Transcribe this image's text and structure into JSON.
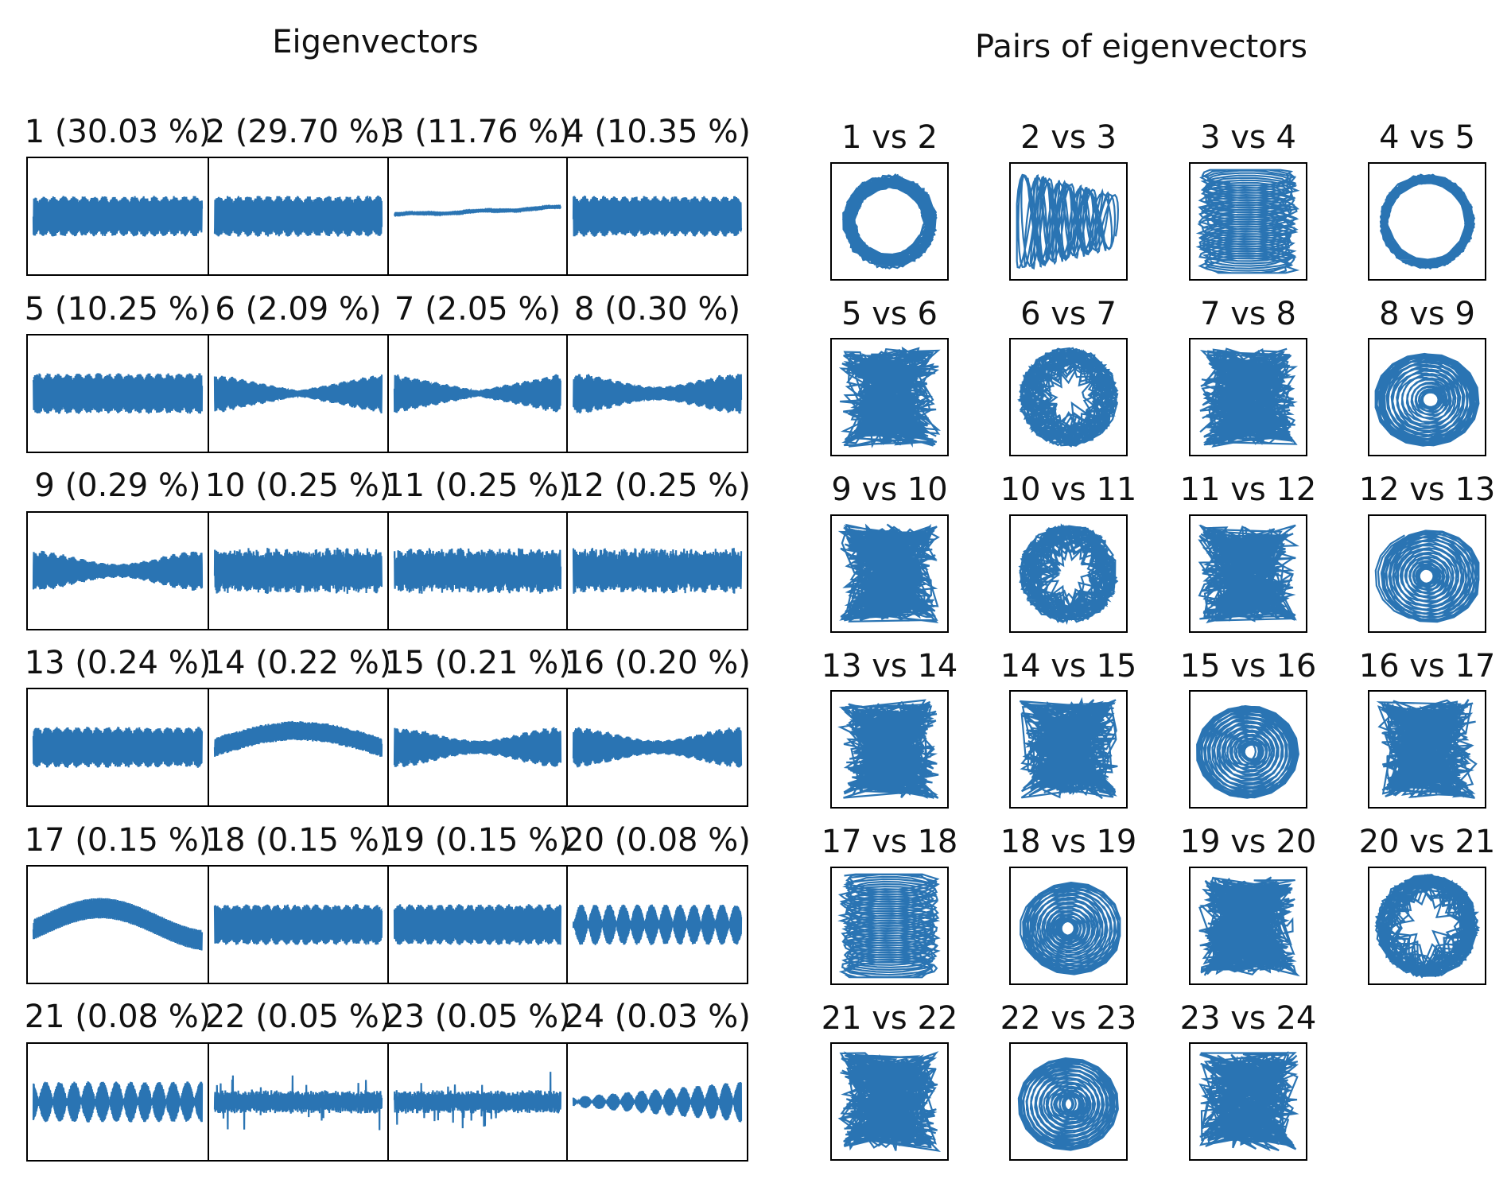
{
  "figure": {
    "left_title": "Eigenvectors",
    "right_title": "Pairs of eigenvectors",
    "line_color": "#2a74b3",
    "frame_color": "#000000"
  },
  "chart_data": [
    {
      "type": "line",
      "title": "Eigenvectors",
      "layout": "6x4 grid of small multiples, shared frame per row, no axis ticks",
      "panels": [
        {
          "label": "1 (30.03 %)",
          "component": 1,
          "variance_pct": 30.03,
          "pattern": "constant-amplitude oscillation"
        },
        {
          "label": "2 (29.70 %)",
          "component": 2,
          "variance_pct": 29.7,
          "pattern": "constant-amplitude oscillation"
        },
        {
          "label": "3 (11.76 %)",
          "component": 3,
          "variance_pct": 11.76,
          "pattern": "slow rising trend"
        },
        {
          "label": "4 (10.35 %)",
          "component": 4,
          "variance_pct": 10.35,
          "pattern": "constant-amplitude oscillation"
        },
        {
          "label": "5 (10.25 %)",
          "component": 5,
          "variance_pct": 10.25,
          "pattern": "constant-amplitude oscillation"
        },
        {
          "label": "6 (2.09 %)",
          "component": 6,
          "variance_pct": 2.09,
          "pattern": "amplitude-modulated, minimum at center"
        },
        {
          "label": "7 (2.05 %)",
          "component": 7,
          "variance_pct": 2.05,
          "pattern": "amplitude-modulated, minimum at center"
        },
        {
          "label": "8 (0.30 %)",
          "component": 8,
          "variance_pct": 0.3,
          "pattern": "amplitude-modulated"
        },
        {
          "label": "9 (0.29 %)",
          "component": 9,
          "variance_pct": 0.29,
          "pattern": "amplitude-modulated"
        },
        {
          "label": "10 (0.25 %)",
          "component": 10,
          "variance_pct": 0.25,
          "pattern": "noisy oscillation"
        },
        {
          "label": "11 (0.25 %)",
          "component": 11,
          "variance_pct": 0.25,
          "pattern": "noisy oscillation"
        },
        {
          "label": "12 (0.25 %)",
          "component": 12,
          "variance_pct": 0.25,
          "pattern": "noisy oscillation"
        },
        {
          "label": "13 (0.24 %)",
          "component": 13,
          "variance_pct": 0.24,
          "pattern": "oscillation"
        },
        {
          "label": "14 (0.22 %)",
          "component": 14,
          "variance_pct": 0.22,
          "pattern": "oscillation on hump"
        },
        {
          "label": "15 (0.21 %)",
          "component": 15,
          "variance_pct": 0.21,
          "pattern": "amplitude-modulated"
        },
        {
          "label": "16 (0.20 %)",
          "component": 16,
          "variance_pct": 0.2,
          "pattern": "amplitude-modulated"
        },
        {
          "label": "17 (0.15 %)",
          "component": 17,
          "variance_pct": 0.15,
          "pattern": "oscillation on slow wave"
        },
        {
          "label": "18 (0.15 %)",
          "component": 18,
          "variance_pct": 0.15,
          "pattern": "oscillation"
        },
        {
          "label": "19 (0.15 %)",
          "component": 19,
          "variance_pct": 0.15,
          "pattern": "oscillation"
        },
        {
          "label": "20 (0.08 %)",
          "component": 20,
          "variance_pct": 0.08,
          "pattern": "dense oscillation"
        },
        {
          "label": "21 (0.08 %)",
          "component": 21,
          "variance_pct": 0.08,
          "pattern": "dense oscillation"
        },
        {
          "label": "22 (0.05 %)",
          "component": 22,
          "variance_pct": 0.05,
          "pattern": "bursty noise"
        },
        {
          "label": "23 (0.05 %)",
          "component": 23,
          "variance_pct": 0.05,
          "pattern": "bursty noise"
        },
        {
          "label": "24 (0.03 %)",
          "component": 24,
          "variance_pct": 0.03,
          "pattern": "dense oscillation, growing"
        }
      ]
    },
    {
      "type": "scatter",
      "title": "Pairs of eigenvectors",
      "layout": "6x4 grid of phase plots (eigenvector i vs i+1), no axis ticks",
      "panels": [
        {
          "label": "1 vs 2",
          "shape": "ring"
        },
        {
          "label": "2 vs 3",
          "shape": "oscillation vs trend"
        },
        {
          "label": "3 vs 4",
          "shape": "stacked loops"
        },
        {
          "label": "4 vs 5",
          "shape": "thin ring"
        },
        {
          "label": "5 vs 6",
          "shape": "tangle"
        },
        {
          "label": "6 vs 7",
          "shape": "concentric rings"
        },
        {
          "label": "7 vs 8",
          "shape": "tangle"
        },
        {
          "label": "8 vs 9",
          "shape": "spiral"
        },
        {
          "label": "9 vs 10",
          "shape": "tangle"
        },
        {
          "label": "10 vs 11",
          "shape": "concentric rings"
        },
        {
          "label": "11 vs 12",
          "shape": "tangle"
        },
        {
          "label": "12 vs 13",
          "shape": "spiral"
        },
        {
          "label": "13 vs 14",
          "shape": "tangle"
        },
        {
          "label": "14 vs 15",
          "shape": "tangle"
        },
        {
          "label": "15 vs 16",
          "shape": "spiral"
        },
        {
          "label": "16 vs 17",
          "shape": "tangle"
        },
        {
          "label": "17 vs 18",
          "shape": "stacked loops"
        },
        {
          "label": "18 vs 19",
          "shape": "spiral"
        },
        {
          "label": "19 vs 20",
          "shape": "tangle"
        },
        {
          "label": "20 vs 21",
          "shape": "dense disc"
        },
        {
          "label": "21 vs 22",
          "shape": "tangle"
        },
        {
          "label": "22 vs 23",
          "shape": "spiral"
        },
        {
          "label": "23 vs 24",
          "shape": "tangle"
        }
      ]
    }
  ]
}
